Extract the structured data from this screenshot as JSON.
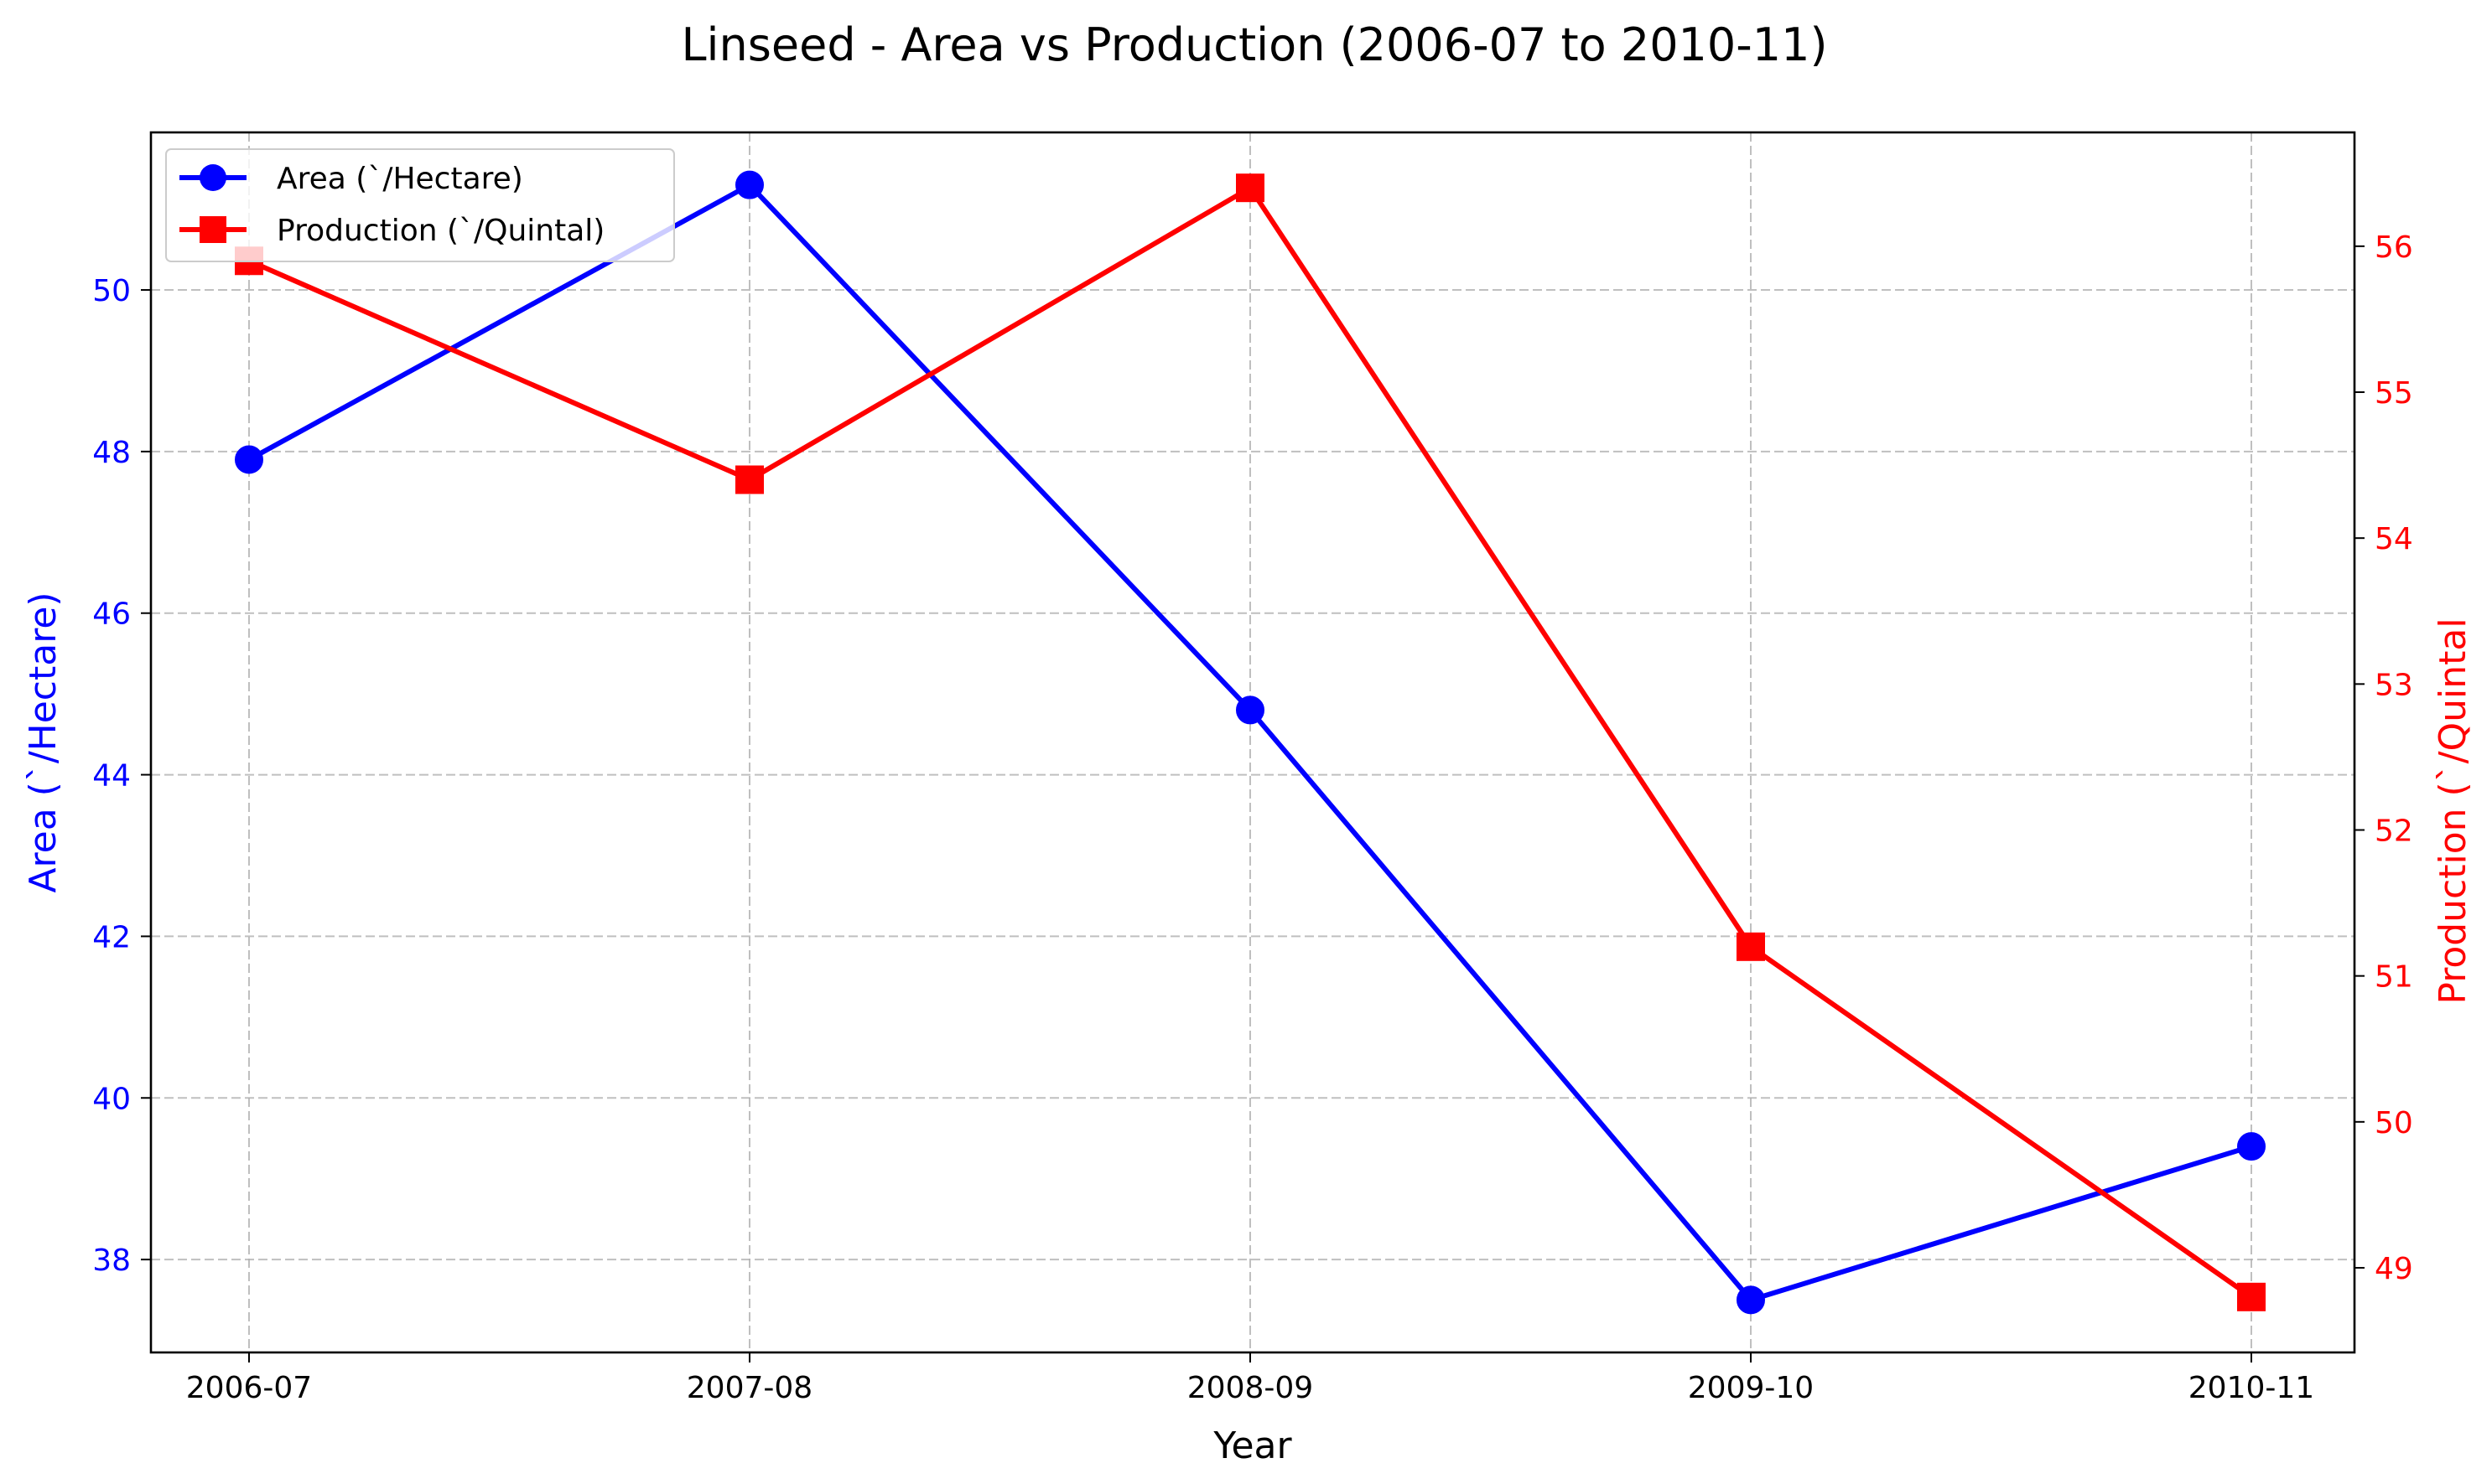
{
  "chart_data": {
    "type": "line",
    "title": "Linseed - Area vs Production (2006-07 to 2010-11)",
    "xlabel": "Year",
    "categories": [
      "2006-07",
      "2007-08",
      "2008-09",
      "2009-10",
      "2010-11"
    ],
    "grid": true,
    "legend_position": "top-left",
    "left_axis": {
      "label": "Area (`/Hectare)",
      "color": "#0000ff",
      "ylim": [
        36.85,
        51.95
      ],
      "ticks": [
        38,
        40,
        42,
        44,
        46,
        48,
        50
      ]
    },
    "right_axis": {
      "label": "Production (`/Quintal",
      "color": "#ff0000",
      "ylim": [
        48.42,
        56.78
      ],
      "ticks": [
        49,
        50,
        51,
        52,
        53,
        54,
        55,
        56
      ]
    },
    "series": [
      {
        "name": "Area (`/Hectare)",
        "axis": "left",
        "color": "#0000ff",
        "marker": "circle",
        "values": [
          47.9,
          51.3,
          44.8,
          37.5,
          39.4
        ]
      },
      {
        "name": "Production (`/Quintal)",
        "axis": "right",
        "color": "#ff0000",
        "marker": "square",
        "values": [
          55.9,
          54.4,
          56.4,
          51.2,
          48.8
        ]
      }
    ]
  }
}
